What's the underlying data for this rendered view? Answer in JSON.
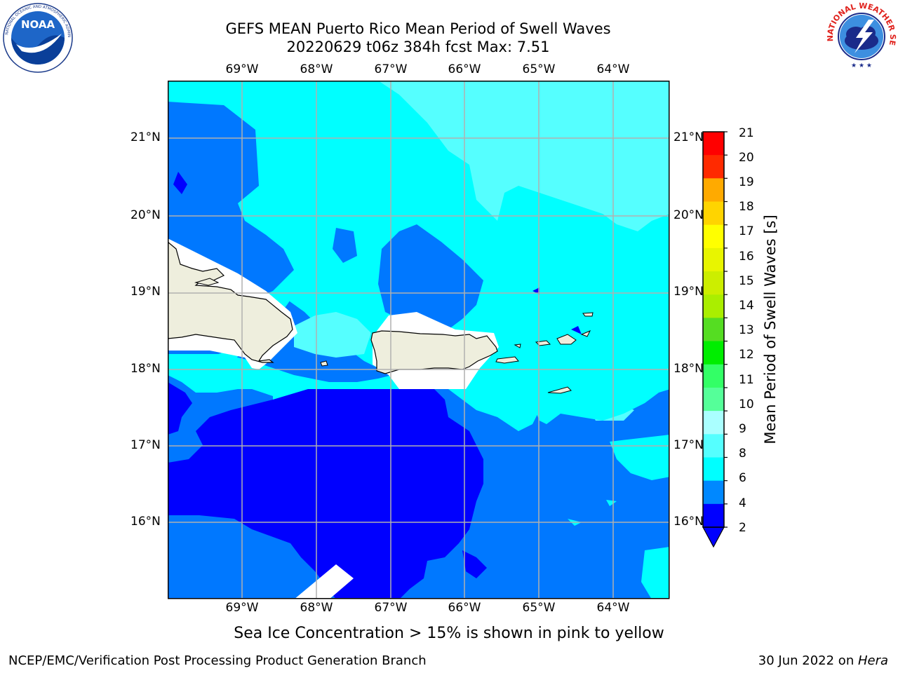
{
  "title": {
    "line1": "GEFS MEAN Puerto Rico Mean Period of Swell Waves",
    "line2": "20220629 t06z 384h fcst   Max: 7.51"
  },
  "map": {
    "lon_labels": [
      "69°W",
      "68°W",
      "67°W",
      "66°W",
      "65°W",
      "64°W"
    ],
    "lat_labels": [
      "21°N",
      "20°N",
      "19°N",
      "18°N",
      "17°N",
      "16°N"
    ],
    "gridlines": true,
    "land_color": "#eeeedd",
    "coastline_color": "#000000"
  },
  "colorbar": {
    "label": "Mean Period of Swell Waves [s]",
    "ticks": [
      "21",
      "20",
      "19",
      "18",
      "17",
      "16",
      "15",
      "14",
      "13",
      "12",
      "11",
      "10",
      "9",
      "8",
      "6",
      "4",
      "2"
    ],
    "colors": [
      "#ff0000",
      "#ff2a00",
      "#ff5500",
      "#ff8000",
      "#ffaa00",
      "#ffd400",
      "#ffff00",
      "#e8f500",
      "#ccee00",
      "#aaee00",
      "#55dd22",
      "#00ee00",
      "#33ff66",
      "#55ff99",
      "#aaffff",
      "#55ffff",
      "#00ffff",
      "#0088ff",
      "#0000ff"
    ],
    "extend": "min"
  },
  "legend_levels": {
    "2-4": "#0078ff",
    "below-2": "#0000ff",
    "4-6": "#00ffff",
    "6-8": "#55ffff"
  },
  "caption": "Sea Ice Concentration > 15% is shown in pink to yellow",
  "footer": {
    "left": "NCEP/EMC/Verification Post Processing Product Generation Branch",
    "right_prefix": "30 Jun 2022 on ",
    "right_machine": "Hera"
  },
  "logos": {
    "left": {
      "name": "noaa-logo",
      "text": "NOAA",
      "ring_text": "NATIONAL OCEANIC AND ATMOSPHERIC ADMINISTRATION · U.S. DEPARTMENT OF COMMERCE"
    },
    "right": {
      "name": "nws-logo",
      "ring_text": "NATIONAL WEATHER SERVICE"
    }
  }
}
